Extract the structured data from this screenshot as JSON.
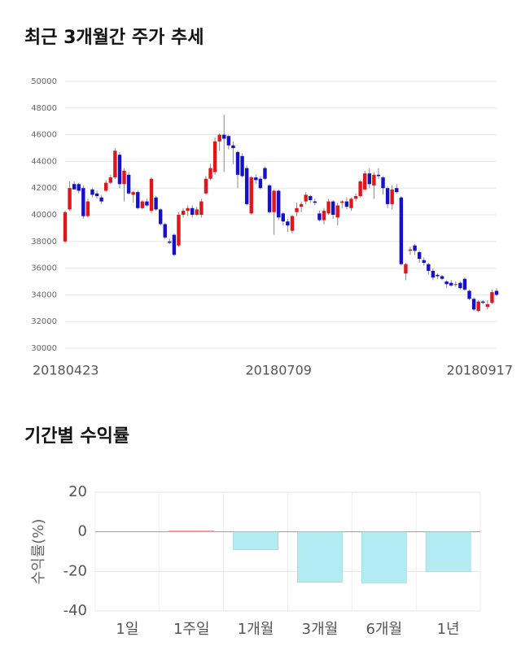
{
  "chart_data": [
    {
      "type": "candlestick",
      "title": "최근 3개월간 주가 추세",
      "categories": [
        "20180423",
        null,
        null,
        null,
        null,
        null,
        null,
        null,
        null,
        null,
        null,
        null,
        null,
        null,
        null,
        null,
        null,
        null,
        null,
        null,
        null,
        null,
        null,
        null,
        null,
        null,
        null,
        null,
        null,
        null,
        null,
        null,
        null,
        null,
        null,
        null,
        null,
        null,
        null,
        null,
        null,
        null,
        null,
        null,
        null,
        null,
        null,
        "20180709",
        null,
        null,
        null,
        null,
        null,
        null,
        null,
        null,
        null,
        null,
        null,
        null,
        null,
        null,
        null,
        null,
        null,
        null,
        null,
        null,
        null,
        null,
        null,
        null,
        null,
        null,
        null,
        null,
        null,
        null,
        null,
        null,
        null,
        null,
        null,
        null,
        null,
        null,
        null,
        null,
        null,
        null,
        null,
        null,
        null,
        null,
        null,
        "20180917"
      ],
      "open": [
        38000,
        40400,
        42300,
        42300,
        42000,
        39900,
        41900,
        41600,
        41300,
        41800,
        42400,
        42800,
        44500,
        42300,
        43000,
        41500,
        41700,
        40500,
        41000,
        40300,
        41300,
        40400,
        39300,
        38000,
        38500,
        37700,
        40000,
        40300,
        40500,
        40000,
        40000,
        41600,
        42700,
        43200,
        45500,
        46000,
        45900,
        45200,
        44700,
        44400,
        43500,
        40100,
        42800,
        42700,
        43500,
        42200,
        40200,
        41800,
        40100,
        39500,
        38800,
        40200,
        40600,
        41000,
        41400,
        41000,
        40100,
        39600,
        40100,
        41000,
        39800,
        40900,
        41000,
        40500,
        41200,
        41400,
        41900,
        43100,
        42200,
        43000,
        42800,
        42000,
        40800,
        42000,
        41300,
        35600,
        37300,
        37700,
        37200,
        36600,
        36300,
        35800,
        35500,
        35400,
        35000,
        34900,
        34800,
        34900,
        35200,
        34300,
        33700,
        32800,
        33500,
        33100,
        33400,
        34300
      ],
      "high": [
        40300,
        42500,
        42500,
        42400,
        42200,
        41200,
        42000,
        41800,
        41500,
        42600,
        43000,
        45000,
        44700,
        43500,
        43200,
        41800,
        41800,
        41100,
        41200,
        42800,
        41400,
        40500,
        39400,
        38200,
        38600,
        40200,
        40500,
        40700,
        40700,
        40600,
        41200,
        42900,
        43800,
        45800,
        46100,
        47500,
        46000,
        45500,
        44800,
        44600,
        43700,
        42900,
        43000,
        42900,
        43600,
        42300,
        41900,
        41900,
        40200,
        39700,
        40000,
        40900,
        41000,
        41700,
        41500,
        41200,
        40300,
        40500,
        41200,
        41100,
        40900,
        41100,
        41300,
        41300,
        41600,
        42600,
        43300,
        43500,
        43200,
        43500,
        42900,
        42100,
        42200,
        42300,
        41400,
        36400,
        37600,
        37800,
        37300,
        36800,
        36400,
        36000,
        35600,
        35500,
        35100,
        35100,
        35000,
        35000,
        35300,
        34400,
        33800,
        33600,
        33600,
        33600,
        34400,
        34500
      ],
      "low": [
        37900,
        40300,
        41900,
        41600,
        39700,
        39800,
        41300,
        41200,
        40800,
        41700,
        42300,
        42700,
        42000,
        41000,
        41500,
        40900,
        40400,
        40400,
        40600,
        40100,
        40300,
        39200,
        38200,
        37800,
        36900,
        37600,
        39800,
        39900,
        39800,
        39900,
        39800,
        41500,
        42600,
        43000,
        44800,
        43200,
        44900,
        43800,
        42000,
        42800,
        40700,
        40000,
        42300,
        41900,
        42600,
        40100,
        38500,
        39600,
        39200,
        38700,
        38600,
        39900,
        40200,
        40800,
        40900,
        40700,
        39500,
        39300,
        40000,
        39700,
        39200,
        40500,
        40400,
        40300,
        41000,
        41300,
        41800,
        42000,
        41200,
        42700,
        41500,
        40500,
        40400,
        41600,
        36200,
        35100,
        37000,
        37000,
        36400,
        36200,
        35500,
        35100,
        35200,
        35100,
        34500,
        34600,
        34600,
        34400,
        34300,
        33600,
        32800,
        32700,
        33300,
        32900,
        33300,
        33900
      ],
      "close": [
        40200,
        42000,
        41900,
        41800,
        39900,
        41000,
        41500,
        41400,
        41000,
        42400,
        42800,
        44800,
        42300,
        43300,
        41600,
        41700,
        40500,
        41000,
        40700,
        42700,
        40400,
        39300,
        38300,
        37900,
        37000,
        40000,
        40300,
        40500,
        40000,
        40400,
        41000,
        42700,
        43500,
        45500,
        46000,
        45700,
        45200,
        45000,
        43000,
        42900,
        40800,
        42800,
        42600,
        42000,
        42700,
        40200,
        41800,
        39800,
        39500,
        39200,
        39900,
        40500,
        40800,
        41500,
        41100,
        40900,
        39600,
        40300,
        41000,
        40000,
        40700,
        41000,
        40600,
        41200,
        41400,
        42500,
        43100,
        42300,
        43000,
        42900,
        42000,
        40800,
        41900,
        41700,
        36300,
        36300,
        37400,
        37300,
        36700,
        36400,
        35800,
        35300,
        35400,
        35200,
        34800,
        34700,
        34800,
        34500,
        34400,
        33700,
        32900,
        33500,
        33400,
        33300,
        34200,
        34000
      ],
      "up_color": "#e0161b",
      "down_color": "#1510c9",
      "ylim": [
        30000,
        50000
      ],
      "yticks": [
        30000,
        32000,
        34000,
        36000,
        38000,
        40000,
        42000,
        44000,
        46000,
        48000,
        50000
      ],
      "grid": true
    },
    {
      "type": "bar",
      "title": "기간별 수익률",
      "y_label": "수익률(%)",
      "categories": [
        "1일",
        "1주일",
        "1개월",
        "3개월",
        "6개월",
        "1년"
      ],
      "values": [
        0,
        0.5,
        -9,
        -25.5,
        -25.8,
        -20
      ],
      "positive_color": "#f4a3a3",
      "negative_color": "#b3ebf3",
      "ylim": [
        -40,
        20
      ],
      "yticks": [
        20,
        0,
        -20,
        -40
      ],
      "grid": true
    }
  ]
}
